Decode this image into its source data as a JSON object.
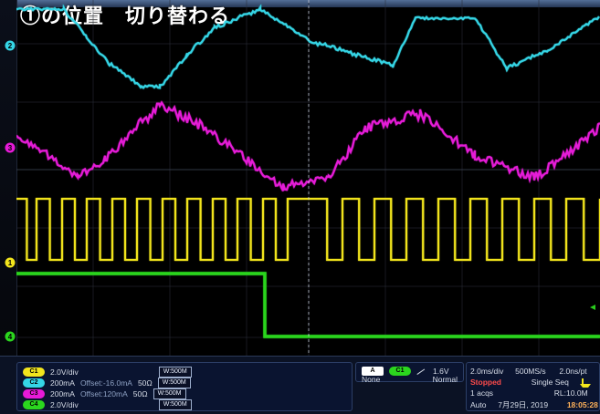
{
  "overlay_title": "①の位置　切り替わる",
  "colors": {
    "ch1": "#f2e51d",
    "ch2": "#35d6e6",
    "ch3": "#e61ad8",
    "ch4": "#2bd61e",
    "grid": "#2a2f3a",
    "panel_bg": "#0b1224",
    "panel_border": "#2c3e66"
  },
  "markers": {
    "ch2": "2",
    "ch3": "3",
    "ch1": "1",
    "ch4": "4"
  },
  "bottom": {
    "channels": [
      {
        "id": "ch1",
        "badge": "C1",
        "scale": "2.0V/div",
        "bw": "W:500M"
      },
      {
        "id": "ch2",
        "badge": "C2",
        "scale": "200mA",
        "offset": "Offset:-16.0mA",
        "imp": "50Ω",
        "bw": "W:500M"
      },
      {
        "id": "ch3",
        "badge": "C3",
        "scale": "200mA",
        "offset": "Offset:120mA",
        "imp": "50Ω",
        "bw": "W:500M"
      },
      {
        "id": "ch4",
        "badge": "C4",
        "scale": "2.0V/div",
        "bw": "W:500M"
      }
    ],
    "trigger": {
      "label_a": "A",
      "label_src": "C1",
      "level": "1.6V",
      "none": "None",
      "mode": "Normal"
    },
    "acq": {
      "timebase": "2.0ms/div",
      "sample_rate": "500MS/s",
      "resolution": "2.0ns/pt",
      "status": "Stopped",
      "seq": "Single Seq",
      "acqs": "1 acqs",
      "rl": "RL:10.0M",
      "auto": "Auto",
      "date": "7月29日, 2019",
      "time": "18:05:28"
    }
  }
}
